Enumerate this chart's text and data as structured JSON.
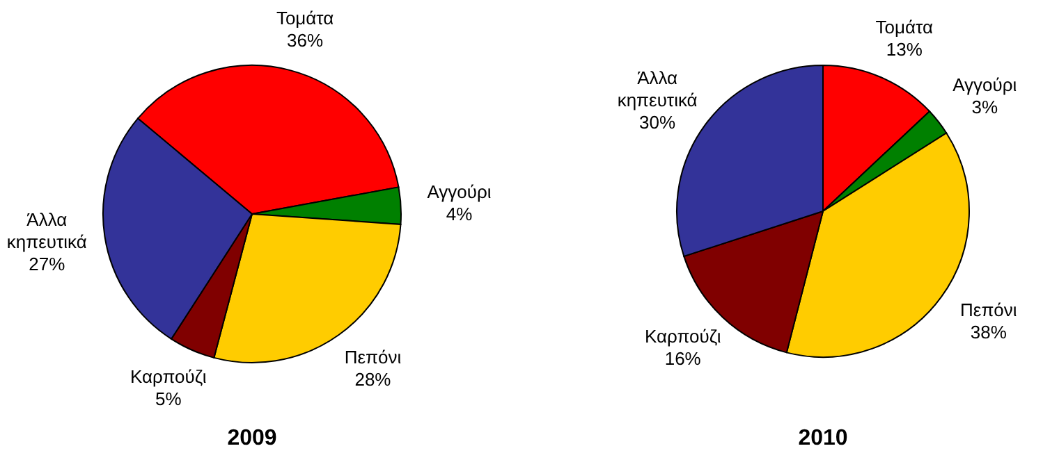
{
  "chart_data": [
    {
      "type": "pie",
      "title": "2009",
      "categories": [
        "Τομάτα",
        "Αγγούρι",
        "Πεπόνι",
        "Καρπούζι",
        "Άλλα κηπευτικά"
      ],
      "values": [
        36,
        4,
        28,
        5,
        27
      ],
      "value_labels": [
        "36%",
        "4%",
        "28%",
        "5%",
        "27%"
      ],
      "colors": [
        "#ff0000",
        "#008000",
        "#ffcc00",
        "#800000",
        "#333399"
      ]
    },
    {
      "type": "pie",
      "title": "2010",
      "categories": [
        "Τομάτα",
        "Αγγούρι",
        "Πεπόνι",
        "Καρπούζι",
        "Άλλα κηπευτικά"
      ],
      "values": [
        13,
        3,
        38,
        16,
        30
      ],
      "value_labels": [
        "13%",
        "3%",
        "38%",
        "16%",
        "30%"
      ],
      "colors": [
        "#ff0000",
        "#008000",
        "#ffcc00",
        "#800000",
        "#333399"
      ]
    }
  ]
}
